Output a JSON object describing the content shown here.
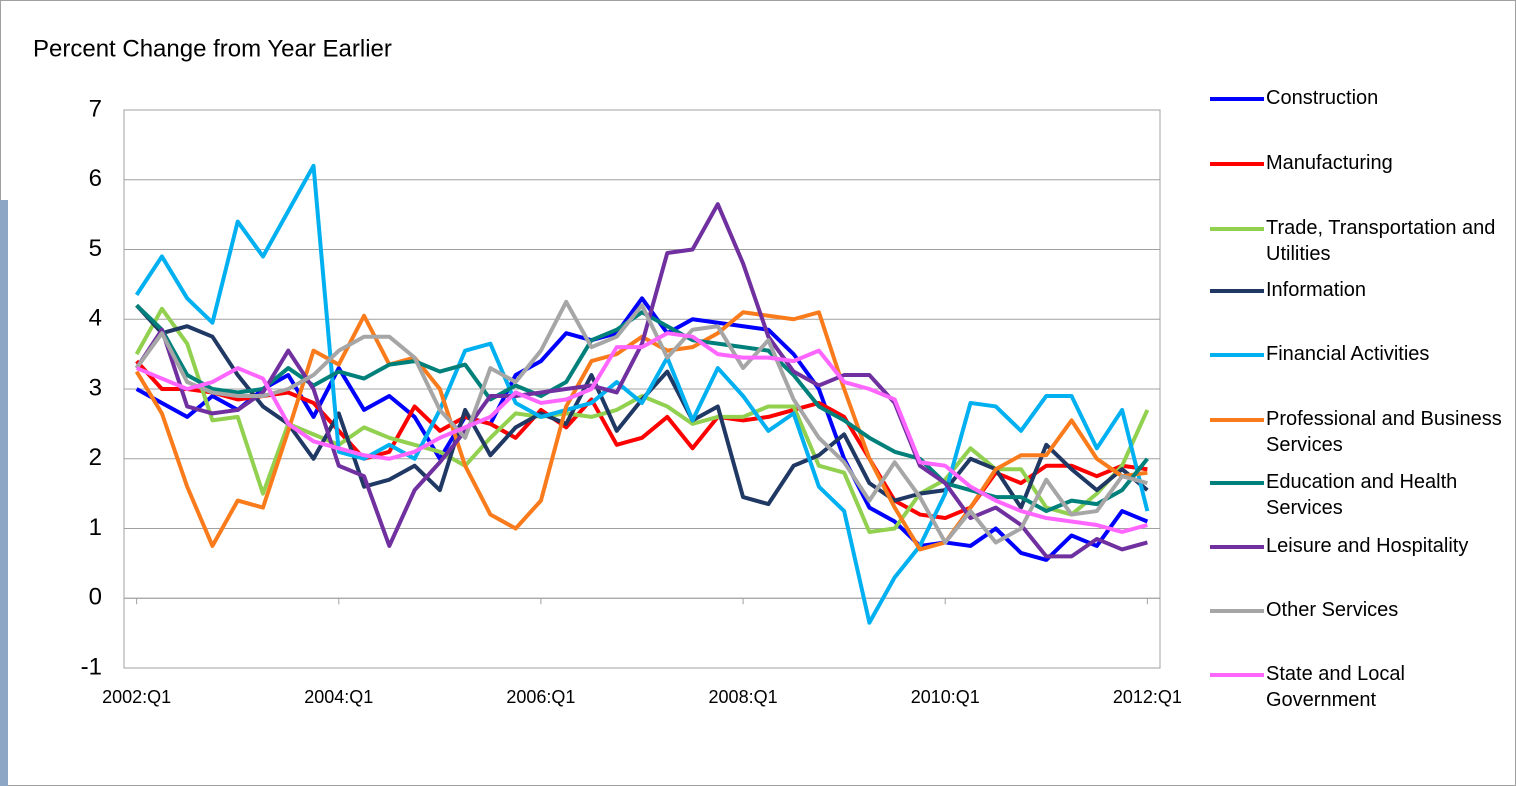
{
  "chart_data": {
    "type": "line",
    "title": "Percent Change from Year Earlier",
    "categories": [
      "2002:Q1",
      null,
      null,
      null,
      null,
      null,
      null,
      null,
      "2004:Q1",
      null,
      null,
      null,
      null,
      null,
      null,
      null,
      "2006:Q1",
      null,
      null,
      null,
      null,
      null,
      null,
      null,
      "2008:Q1",
      null,
      null,
      null,
      null,
      null,
      null,
      null,
      "2010:Q1",
      null,
      null,
      null,
      null,
      null,
      null,
      null,
      "2012:Q1"
    ],
    "ylim": [
      -1,
      7
    ],
    "yticks": [
      -1,
      0,
      1,
      2,
      3,
      4,
      5,
      6,
      7
    ],
    "grid": true,
    "legend": "right",
    "series": [
      {
        "name": "Construction",
        "color": "#0000ff",
        "values": [
          3.0,
          2.8,
          2.6,
          2.9,
          2.7,
          3.0,
          3.2,
          2.6,
          3.3,
          2.7,
          2.9,
          2.6,
          2.0,
          2.6,
          2.5,
          3.2,
          3.4,
          3.8,
          3.7,
          3.8,
          4.3,
          3.8,
          4.0,
          3.95,
          3.9,
          3.85,
          3.5,
          3.0,
          2.0,
          1.3,
          1.1,
          0.75,
          0.8,
          0.75,
          1.0,
          0.65,
          0.55,
          0.9,
          0.75,
          1.25,
          1.1
        ]
      },
      {
        "name": "Manufacturing",
        "color": "#ff0000",
        "values": [
          3.4,
          3.0,
          3.0,
          2.95,
          2.85,
          2.9,
          2.95,
          2.8,
          2.4,
          2.0,
          2.1,
          2.75,
          2.4,
          2.6,
          2.5,
          2.3,
          2.7,
          2.45,
          2.85,
          2.2,
          2.3,
          2.6,
          2.15,
          2.6,
          2.55,
          2.6,
          2.7,
          2.8,
          2.6,
          2.0,
          1.4,
          1.2,
          1.15,
          1.3,
          1.8,
          1.65,
          1.9,
          1.9,
          1.75,
          1.9,
          1.85
        ]
      },
      {
        "name": "Trade, Transportation and Utilities",
        "color": "#92d050",
        "values": [
          3.5,
          4.15,
          3.65,
          2.55,
          2.6,
          1.5,
          2.5,
          2.35,
          2.2,
          2.45,
          2.3,
          2.2,
          2.1,
          1.9,
          2.3,
          2.65,
          2.6,
          2.65,
          2.6,
          2.7,
          2.9,
          2.75,
          2.5,
          2.6,
          2.6,
          2.75,
          2.75,
          1.9,
          1.8,
          0.95,
          1.0,
          1.5,
          1.7,
          2.15,
          1.85,
          1.85,
          1.3,
          1.2,
          1.5,
          1.9,
          2.7
        ]
      },
      {
        "name": "Information",
        "color": "#1f3864",
        "values": [
          4.2,
          3.8,
          3.9,
          3.75,
          3.2,
          2.75,
          2.5,
          2.0,
          2.65,
          1.6,
          1.7,
          1.9,
          1.55,
          2.7,
          2.05,
          2.45,
          2.65,
          2.5,
          3.2,
          2.4,
          2.85,
          3.25,
          2.55,
          2.75,
          1.45,
          1.35,
          1.9,
          2.05,
          2.35,
          1.65,
          1.4,
          1.5,
          1.55,
          2.0,
          1.85,
          1.3,
          2.2,
          1.85,
          1.55,
          1.85,
          1.55
        ]
      },
      {
        "name": "Financial Activities",
        "color": "#00b0f0",
        "values": [
          4.35,
          4.9,
          4.3,
          3.95,
          5.4,
          4.9,
          5.55,
          6.2,
          2.1,
          2.0,
          2.2,
          2.0,
          2.7,
          3.55,
          3.65,
          2.8,
          2.6,
          2.7,
          2.8,
          3.1,
          2.8,
          3.45,
          2.55,
          3.3,
          2.9,
          2.4,
          2.65,
          1.6,
          1.25,
          -0.35,
          0.3,
          0.75,
          1.5,
          2.8,
          2.75,
          2.4,
          2.9,
          2.9,
          2.15,
          2.7,
          1.25
        ]
      },
      {
        "name": "Professional and Business Services",
        "color": "#f97b1c",
        "values": [
          3.25,
          2.65,
          1.6,
          0.75,
          1.4,
          1.3,
          2.4,
          3.55,
          3.35,
          4.05,
          3.35,
          3.45,
          3.0,
          1.9,
          1.2,
          1.0,
          1.4,
          2.75,
          3.4,
          3.5,
          3.75,
          3.55,
          3.6,
          3.8,
          4.1,
          4.05,
          4.0,
          4.1,
          3.0,
          2.0,
          1.3,
          0.7,
          0.8,
          1.3,
          1.85,
          2.05,
          2.05,
          2.55,
          2.0,
          1.75,
          1.8
        ]
      },
      {
        "name": "Education and Health Services",
        "color": "#00807a",
        "values": [
          4.2,
          3.85,
          3.2,
          3.0,
          2.95,
          3.0,
          3.3,
          3.05,
          3.25,
          3.15,
          3.35,
          3.4,
          3.25,
          3.35,
          2.85,
          3.05,
          2.9,
          3.1,
          3.7,
          3.85,
          4.1,
          3.9,
          3.7,
          3.65,
          3.6,
          3.55,
          3.2,
          2.75,
          2.55,
          2.3,
          2.1,
          2.0,
          1.65,
          1.55,
          1.45,
          1.45,
          1.25,
          1.4,
          1.35,
          1.55,
          2.0
        ]
      },
      {
        "name": "Leisure and Hospitality",
        "color": "#7030a0",
        "values": [
          3.3,
          3.85,
          2.75,
          2.65,
          2.7,
          2.95,
          3.55,
          3.0,
          1.9,
          1.75,
          0.75,
          1.55,
          1.95,
          2.4,
          2.9,
          2.9,
          2.95,
          3.0,
          3.05,
          2.95,
          3.65,
          4.95,
          5.0,
          5.65,
          4.8,
          3.75,
          3.25,
          3.05,
          3.2,
          3.2,
          2.8,
          1.9,
          1.65,
          1.15,
          1.3,
          1.05,
          0.6,
          0.6,
          0.85,
          0.7,
          0.8
        ]
      },
      {
        "name": "Other Services",
        "color": "#a6a6a6",
        "values": [
          3.3,
          3.8,
          3.1,
          2.95,
          2.9,
          2.9,
          3.0,
          3.2,
          3.55,
          3.75,
          3.75,
          3.45,
          2.7,
          2.3,
          3.3,
          3.1,
          3.55,
          4.25,
          3.6,
          3.75,
          4.2,
          3.45,
          3.85,
          3.9,
          3.3,
          3.7,
          2.85,
          2.3,
          1.95,
          1.4,
          1.95,
          1.45,
          0.8,
          1.25,
          0.8,
          1.0,
          1.7,
          1.2,
          1.25,
          1.75,
          1.65
        ]
      },
      {
        "name": "State and Local Government",
        "color": "#ff66ff",
        "values": [
          3.3,
          3.15,
          3.0,
          3.1,
          3.3,
          3.15,
          2.5,
          2.25,
          2.15,
          2.05,
          2.0,
          2.1,
          2.3,
          2.45,
          2.6,
          2.95,
          2.8,
          2.85,
          3.0,
          3.6,
          3.6,
          3.8,
          3.75,
          3.5,
          3.45,
          3.45,
          3.4,
          3.55,
          3.1,
          3.0,
          2.85,
          1.95,
          1.9,
          1.6,
          1.4,
          1.25,
          1.15,
          1.1,
          1.05,
          0.95,
          1.05
        ]
      }
    ]
  }
}
